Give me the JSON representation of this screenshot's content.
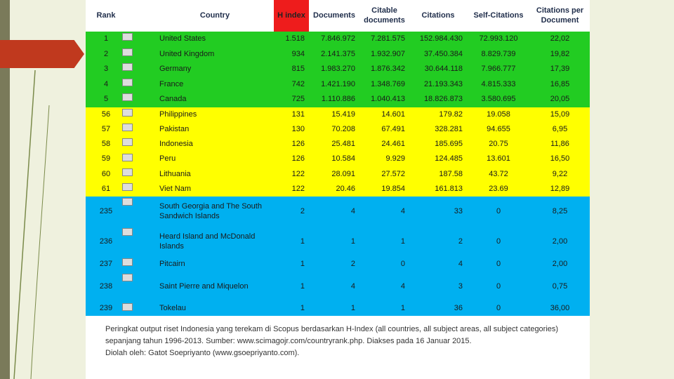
{
  "table": {
    "header": [
      "Rank",
      "Country",
      "H index",
      "Documents",
      "Citable documents",
      "Citations",
      "Self-Citations",
      "Citations per Document"
    ],
    "rows": [
      [
        "1",
        "United States",
        "1.518",
        "7.846.972",
        "7.281.575",
        "152.984.430",
        "72.993.120",
        "22,02"
      ],
      [
        "2",
        "United Kingdom",
        "934",
        "2.141.375",
        "1.932.907",
        "37.450.384",
        "8.829.739",
        "19,82"
      ],
      [
        "3",
        "Germany",
        "815",
        "1.983.270",
        "1.876.342",
        "30.644.118",
        "7.966.777",
        "17,39"
      ],
      [
        "4",
        "France",
        "742",
        "1.421.190",
        "1.348.769",
        "21.193.343",
        "4.815.333",
        "16,85"
      ],
      [
        "5",
        "Canada",
        "725",
        "1.110.886",
        "1.040.413",
        "18.826.873",
        "3.580.695",
        "20,05"
      ],
      [
        "56",
        "Philippines",
        "131",
        "15.419",
        "14.601",
        "179.82",
        "19.058",
        "15,09"
      ],
      [
        "57",
        "Pakistan",
        "130",
        "70.208",
        "67.491",
        "328.281",
        "94.655",
        "6,95"
      ],
      [
        "58",
        "Indonesia",
        "126",
        "25.481",
        "24.461",
        "185.695",
        "20.75",
        "11,86"
      ],
      [
        "59",
        "Peru",
        "126",
        "10.584",
        "9.929",
        "124.485",
        "13.601",
        "16,50"
      ],
      [
        "60",
        "Lithuania",
        "122",
        "28.091",
        "27.572",
        "187.58",
        "43.72",
        "9,22"
      ],
      [
        "61",
        "Viet Nam",
        "122",
        "20.46",
        "19.854",
        "161.813",
        "23.69",
        "12,89"
      ],
      [
        "235",
        "South Georgia and The South Sandwich Islands",
        "2",
        "4",
        "4",
        "33",
        "0",
        "8,25"
      ],
      [
        "236",
        "Heard Island and McDonald Islands",
        "1",
        "1",
        "1",
        "2",
        "0",
        "2,00"
      ],
      [
        "237",
        "Pitcairn",
        "1",
        "2",
        "0",
        "4",
        "0",
        "2,00"
      ],
      [
        "238",
        "Saint Pierre and Miquelon",
        "1",
        "4",
        "4",
        "3",
        "0",
        "0,75"
      ],
      [
        "239",
        "Tokelau",
        "1",
        "1",
        "1",
        "36",
        "0",
        "36,00"
      ]
    ]
  },
  "caption": [
    "Peringkat output riset Indonesia yang terekam di Scopus berdasarkan H-Index (all countries, all subject areas, all subject categories)",
    "sepanjang tahun 1996-2013. Sumber: www.scimagojr.com/countryrank.php. Diakses pada 16 Januar 2015.",
    "Diolah oleh: Gatot Soepriyanto (www.gsoepriyanto.com)."
  ]
}
